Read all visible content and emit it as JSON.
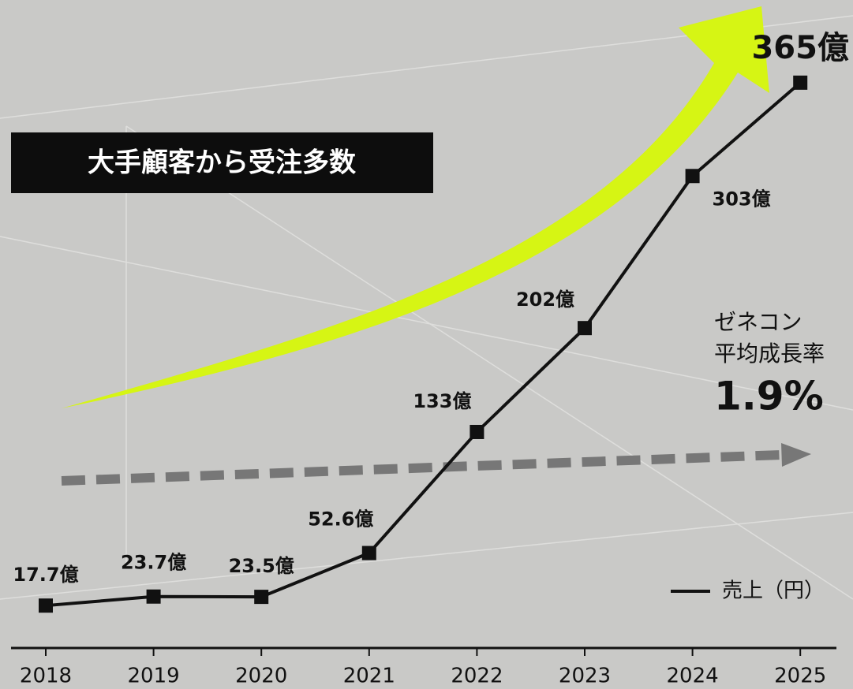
{
  "chart_data": {
    "type": "line",
    "title": "大手顧客から受注多数",
    "categories": [
      "2018",
      "2019",
      "2020",
      "2021",
      "2022",
      "2023",
      "2024",
      "2025"
    ],
    "series": [
      {
        "name": "売上（円）",
        "color": "#111111",
        "values": [
          17.7,
          23.7,
          23.5,
          52.6,
          133,
          202,
          303,
          365
        ],
        "value_labels": [
          "17.7億",
          "23.7億",
          "23.5億",
          "52.6億",
          "133億",
          "202億",
          "303億",
          "365億"
        ]
      }
    ],
    "annotations": [
      "ゼネコン",
      "平均成長率",
      "1.9%"
    ],
    "ylim": [
      0,
      400
    ],
    "legend": "bottom-right"
  }
}
